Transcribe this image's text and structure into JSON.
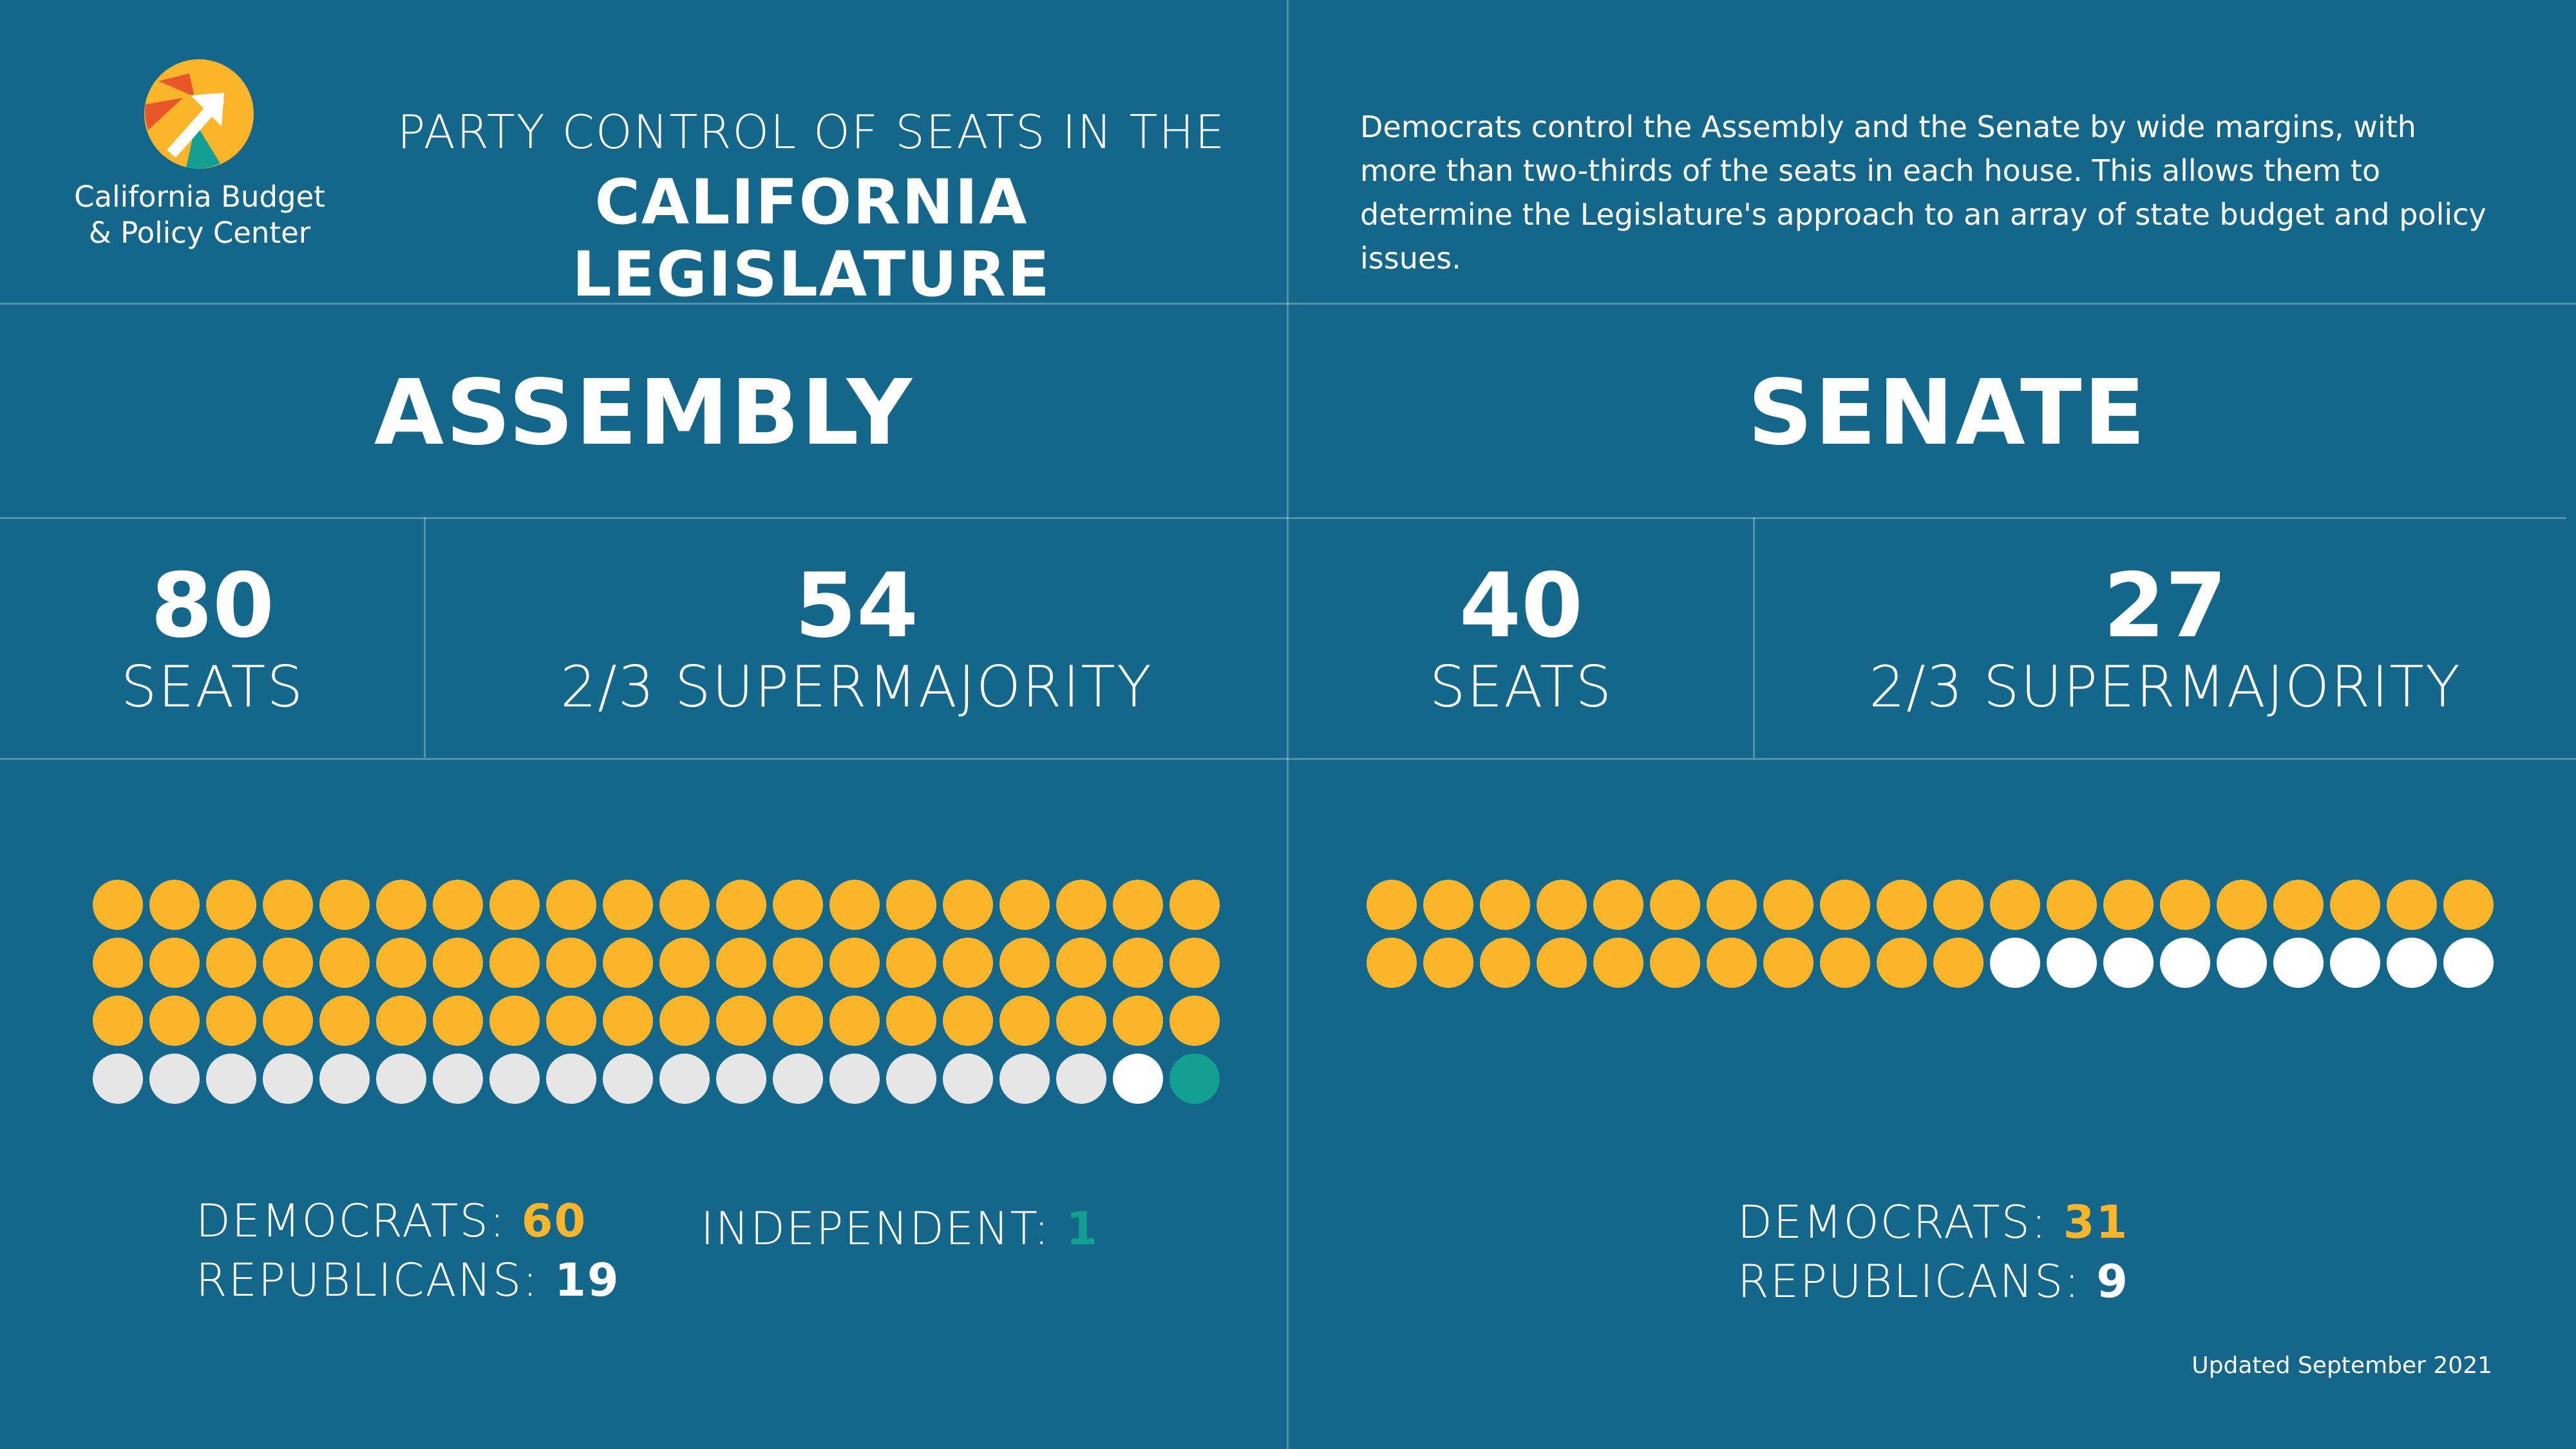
{
  "colors": {
    "background": "#14668a",
    "democrat": "#fbb52a",
    "republican_assembly": "#e6e6e6",
    "republican_senate": "#ffffff",
    "independent": "#13a093",
    "logo_orange": "#e8572a",
    "logo_yellow": "#fbb52a",
    "logo_teal": "#13a093"
  },
  "header": {
    "logo_text_line1": "California Budget",
    "logo_text_line2": "& Policy Center",
    "subtitle": "PARTY CONTROL OF SEATS IN THE",
    "title": "CALIFORNIA LEGISLATURE",
    "description": "Democrats control the Assembly and the Senate by wide margins, with more than two-thirds of the seats in each house. This allows them to determine the Legislature's approach to an array of state budget and policy issues."
  },
  "assembly": {
    "title": "ASSEMBLY",
    "seats": "80",
    "seats_label": "SEATS",
    "supermajority": "54",
    "supermajority_label": "2/3 SUPERMAJORITY",
    "democrats_label": "DEMOCRATS:",
    "democrats": "60",
    "republicans_label": "REPUBLICANS:",
    "republicans": "19",
    "independent_label": "INDEPENDENT:",
    "independent": "1"
  },
  "senate": {
    "title": "SENATE",
    "seats": "40",
    "seats_label": "SEATS",
    "supermajority": "27",
    "supermajority_label": "2/3 SUPERMAJORITY",
    "democrats_label": "DEMOCRATS:",
    "democrats": "31",
    "republicans_label": "REPUBLICANS:",
    "republicans": "9"
  },
  "footer": {
    "updated": "Updated September 2021"
  }
}
